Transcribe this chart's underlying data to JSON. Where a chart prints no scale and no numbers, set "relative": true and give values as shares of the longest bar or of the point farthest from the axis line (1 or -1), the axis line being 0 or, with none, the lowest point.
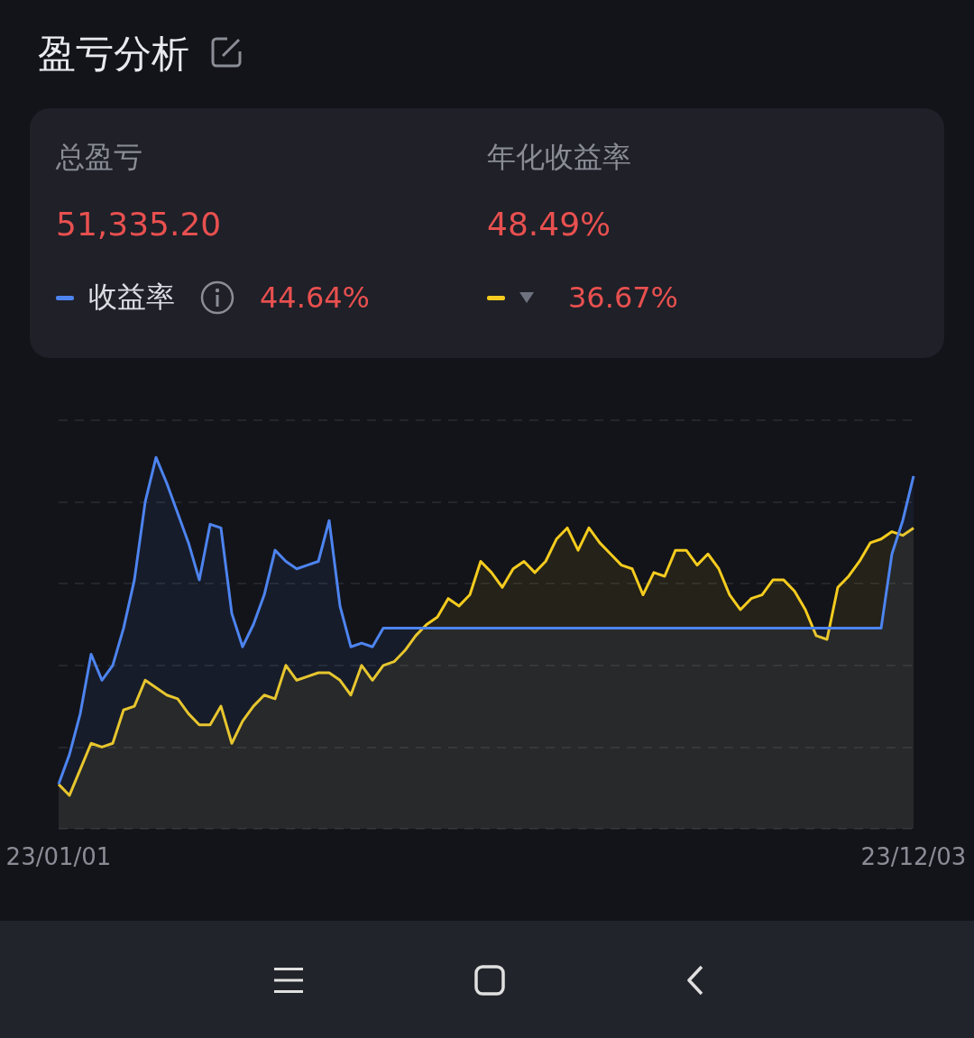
{
  "chart_data": {
    "type": "area",
    "title": "盈亏分析",
    "relative": true,
    "grid": "y",
    "legend": "top",
    "line_style": "solid",
    "marker": "none",
    "annotations": [
      "总盈亏",
      "51,335.20",
      "年化收益率",
      "48.49%",
      "44.64%",
      "36.67%"
    ],
    "categories": [
      "23/01/01",
      null,
      null,
      null,
      null,
      null,
      null,
      null,
      null,
      null,
      null,
      null,
      null,
      null,
      null,
      null,
      null,
      null,
      null,
      null,
      null,
      null,
      null,
      null,
      null,
      null,
      null,
      null,
      null,
      null,
      null,
      null,
      null,
      null,
      null,
      null,
      null,
      null,
      null,
      null,
      null,
      null,
      null,
      null,
      null,
      null,
      null,
      null,
      null,
      null,
      null,
      null,
      null,
      null,
      null,
      null,
      null,
      null,
      null,
      null,
      null,
      null,
      null,
      null,
      null,
      null,
      null,
      null,
      null,
      null,
      null,
      null,
      null,
      null,
      null,
      null,
      null,
      null,
      null,
      "23/12/03"
    ],
    "series": [
      {
        "name": "收益率",
        "color": "#4d84f0",
        "values": [
          0.12,
          0.2,
          0.31,
          0.47,
          0.4,
          0.44,
          0.54,
          0.67,
          0.88,
          1,
          0.93,
          0.85,
          0.77,
          0.67,
          0.82,
          0.81,
          0.58,
          0.49,
          0.55,
          0.63,
          0.75,
          0.72,
          0.7,
          0.71,
          0.72,
          0.83,
          0.6,
          0.49,
          0.5,
          0.49,
          0.54,
          0.54,
          0.54,
          0.54,
          0.54,
          0.54,
          0.54,
          0.54,
          0.54,
          0.54,
          0.54,
          0.54,
          0.54,
          0.54,
          0.54,
          0.54,
          0.54,
          0.54,
          0.54,
          0.54,
          0.54,
          0.54,
          0.54,
          0.54,
          0.54,
          0.54,
          0.54,
          0.54,
          0.54,
          0.54,
          0.54,
          0.54,
          0.54,
          0.54,
          0.54,
          0.54,
          0.54,
          0.54,
          0.54,
          0.54,
          0.54,
          0.54,
          0.54,
          0.54,
          0.54,
          0.54,
          0.54,
          0.74,
          0.83,
          0.95
        ]
      },
      {
        "color": "#f5cc1f",
        "values": [
          0.12,
          0.09,
          0.16,
          0.23,
          0.22,
          0.23,
          0.32,
          0.33,
          0.4,
          0.38,
          0.36,
          0.35,
          0.31,
          0.28,
          0.28,
          0.33,
          0.23,
          0.29,
          0.33,
          0.36,
          0.35,
          0.44,
          0.4,
          0.41,
          0.42,
          0.42,
          0.4,
          0.36,
          0.44,
          0.4,
          0.44,
          0.45,
          0.48,
          0.52,
          0.55,
          0.57,
          0.62,
          0.6,
          0.63,
          0.72,
          0.69,
          0.65,
          0.7,
          0.72,
          0.69,
          0.72,
          0.78,
          0.81,
          0.75,
          0.81,
          0.77,
          0.74,
          0.71,
          0.7,
          0.63,
          0.69,
          0.68,
          0.75,
          0.75,
          0.71,
          0.74,
          0.7,
          0.63,
          0.59,
          0.62,
          0.63,
          0.67,
          0.67,
          0.64,
          0.59,
          0.52,
          0.51,
          0.65,
          0.68,
          0.72,
          0.77,
          0.78,
          0.8,
          0.79,
          0.81
        ]
      }
    ]
  }
}
